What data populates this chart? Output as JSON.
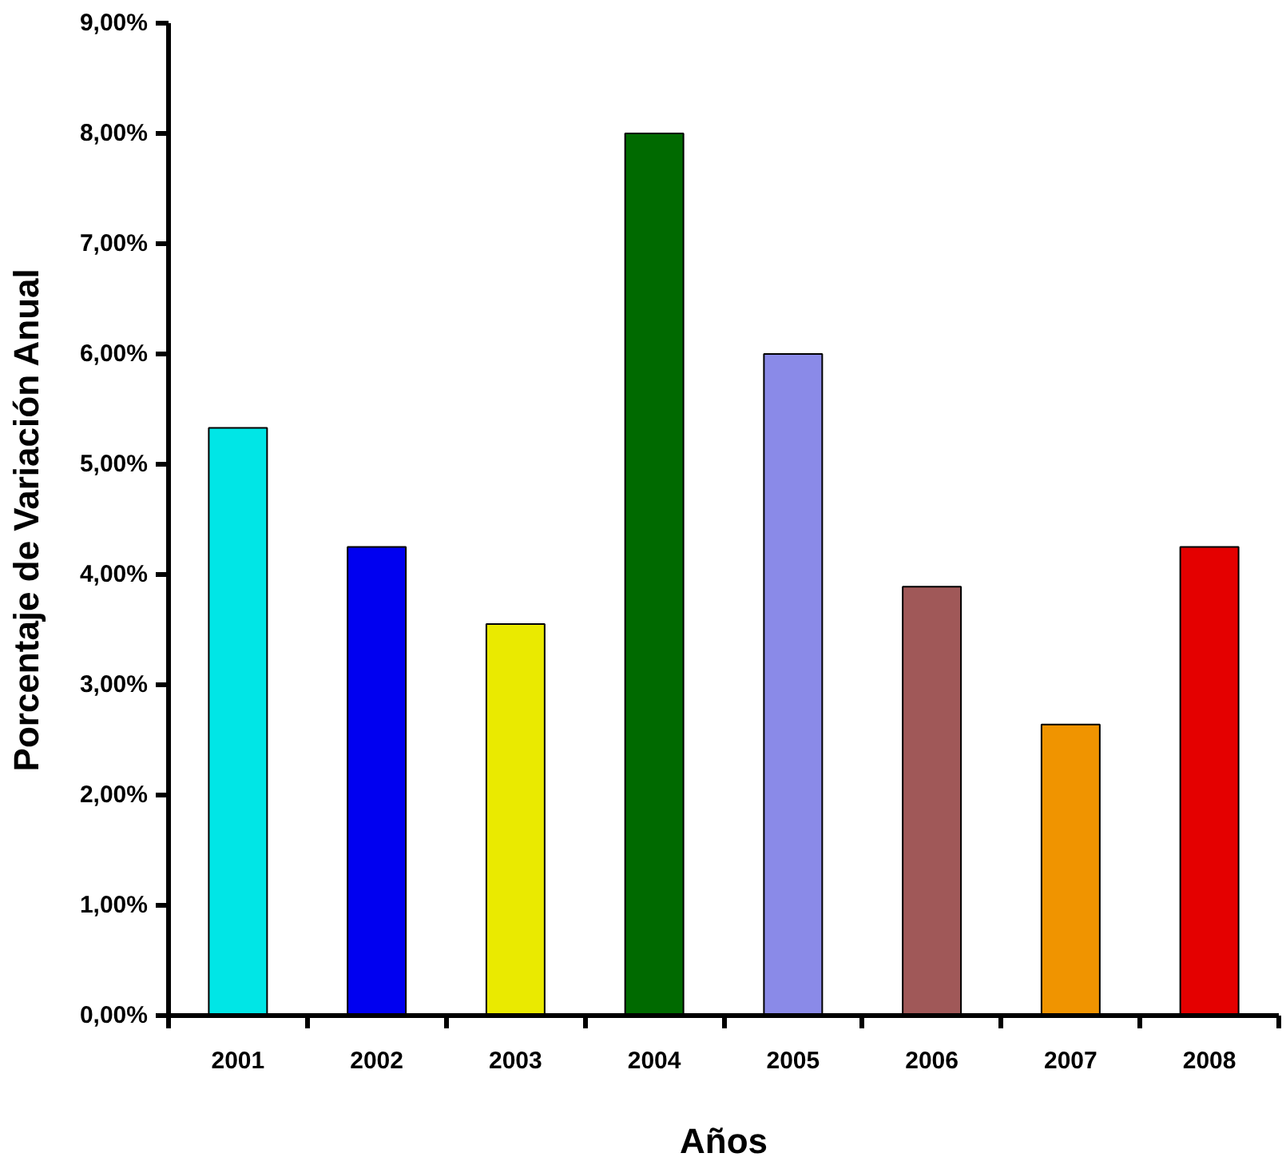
{
  "chart_data": {
    "type": "bar",
    "xlabel": "Años",
    "ylabel": "Porcentaje de Variación Anual",
    "categories": [
      "2001",
      "2002",
      "2003",
      "2004",
      "2005",
      "2006",
      "2007",
      "2008"
    ],
    "values": [
      5.33,
      4.25,
      3.55,
      8.0,
      6.0,
      3.89,
      2.64,
      4.25
    ],
    "colors": [
      "#00e6e6",
      "#0000f0",
      "#eaea00",
      "#006a00",
      "#8a8ae8",
      "#a05858",
      "#f09400",
      "#e40000"
    ],
    "ylim": [
      0,
      9
    ],
    "yticks": [
      {
        "value": 0,
        "label": "0,00%"
      },
      {
        "value": 1,
        "label": "1,00%"
      },
      {
        "value": 2,
        "label": "2,00%"
      },
      {
        "value": 3,
        "label": "3,00%"
      },
      {
        "value": 4,
        "label": "4,00%"
      },
      {
        "value": 5,
        "label": "5,00%"
      },
      {
        "value": 6,
        "label": "6,00%"
      },
      {
        "value": 7,
        "label": "7,00%"
      },
      {
        "value": 8,
        "label": "8,00%"
      },
      {
        "value": 9,
        "label": "9,00%"
      }
    ],
    "grid": false
  }
}
